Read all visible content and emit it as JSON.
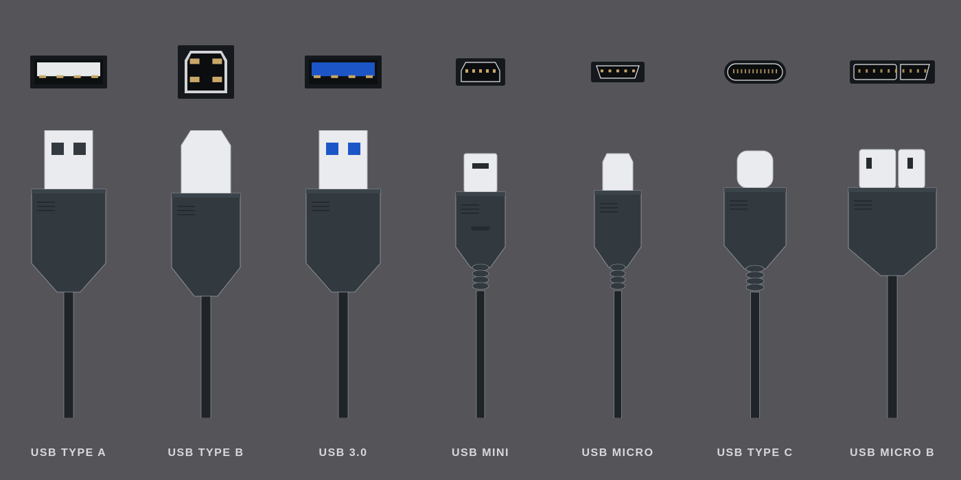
{
  "background_color": "#555459",
  "label_color": "#d8d8da",
  "label_fontsize": 16,
  "label_fontweight": 700,
  "label_letterspacing": 1.5,
  "colors": {
    "port_shell": "#15181c",
    "port_inner_light": "#e6e8ea",
    "pin_gold": "#c9a768",
    "usb3_blue": "#1c56c6",
    "metal": "#e9ebee",
    "metal_shadow": "#b8bbc1",
    "plastic": "#32393f",
    "plastic_light": "#3c444b",
    "plastic_dark": "#262b30",
    "cable": "#1f2429",
    "outline_light": "#9aa3ab"
  },
  "connectors": [
    {
      "id": "usb-type-a",
      "label": "USB TYPE A",
      "port_w": 112,
      "port_h": 48,
      "plug": "a",
      "tip_color": "metal",
      "accent": null
    },
    {
      "id": "usb-type-b",
      "label": "USB TYPE B",
      "port_w": 82,
      "port_h": 78,
      "plug": "b",
      "tip_color": "metal",
      "accent": null
    },
    {
      "id": "usb-3",
      "label": "USB 3.0",
      "port_w": 112,
      "port_h": 48,
      "plug": "a",
      "tip_color": "metal",
      "accent": "usb3_blue"
    },
    {
      "id": "usb-mini",
      "label": "USB MINI",
      "port_w": 72,
      "port_h": 40,
      "plug": "mini",
      "tip_color": "metal",
      "accent": null
    },
    {
      "id": "usb-micro",
      "label": "USB MICRO",
      "port_w": 78,
      "port_h": 30,
      "plug": "micro",
      "tip_color": "metal",
      "accent": null
    },
    {
      "id": "usb-type-c",
      "label": "USB TYPE C",
      "port_w": 90,
      "port_h": 34,
      "plug": "c",
      "tip_color": "metal",
      "accent": null
    },
    {
      "id": "usb-micro-b",
      "label": "USB MICRO B",
      "port_w": 124,
      "port_h": 34,
      "plug": "microb",
      "tip_color": "metal",
      "accent": null
    }
  ]
}
